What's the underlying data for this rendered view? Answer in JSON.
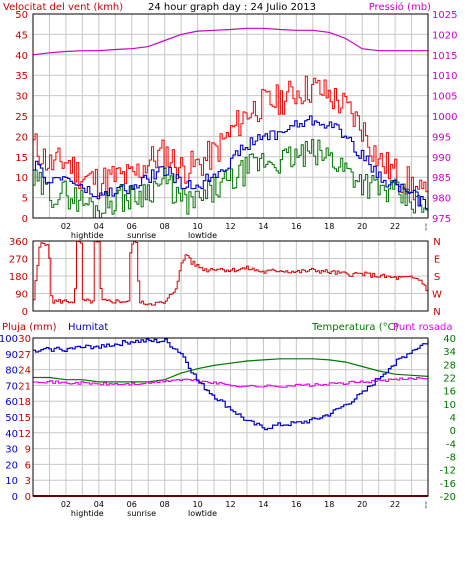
{
  "colors": {
    "wind": "#cc0000",
    "gust": "#ff0000",
    "avg": "#0000cc",
    "green": "#007700",
    "pressure": "#cc00cc",
    "dir": "#dd0000",
    "hum": "#0000cc",
    "temp": "#007700",
    "dew": "#ee00ee",
    "rain": "#cc0000",
    "grid": "#c8c8c8",
    "axis": "#000000"
  },
  "chart_data": [
    {
      "type": "line",
      "title": "24 hour graph day : 24 Julio 2013",
      "ylabel": "Velocitat del vent (kmh)",
      "y2label": "Pressió (mb)",
      "ylim": [
        0,
        50
      ],
      "y2lim": [
        975,
        1025
      ],
      "yticks": [
        "0",
        "5",
        "10",
        "15",
        "20",
        "25",
        "30",
        "35",
        "40",
        "45",
        "50"
      ],
      "y2ticks": [
        "975",
        "980",
        "985",
        "990",
        "995",
        "1000",
        "1005",
        "1010",
        "1015",
        "1020",
        "1025"
      ],
      "xlim": [
        0,
        24
      ],
      "xtick_labels": [
        "02",
        "04",
        "06",
        "08",
        "10",
        "12",
        "14",
        "16",
        "18",
        "20",
        "22"
      ],
      "markers": [
        {
          "label": "hightide",
          "x": 3.3
        },
        {
          "label": "sunrise",
          "x": 6.6
        },
        {
          "label": "lowtide",
          "x": 10.3
        }
      ],
      "series": {
        "gust": {
          "x": [
            0,
            1,
            2,
            3,
            4,
            5,
            6,
            7,
            8,
            9,
            10,
            11,
            12,
            13,
            14,
            15,
            16,
            17,
            18,
            19,
            20,
            21,
            22,
            23,
            24
          ],
          "y": [
            18,
            13,
            14,
            10,
            9,
            10,
            10,
            14,
            16,
            12,
            13,
            16,
            21,
            26,
            28,
            29,
            31,
            32,
            30,
            27,
            22,
            14,
            11,
            8,
            4
          ]
        },
        "avg": {
          "x": [
            0,
            1,
            2,
            3,
            4,
            5,
            6,
            7,
            8,
            9,
            10,
            11,
            12,
            13,
            14,
            15,
            16,
            17,
            18,
            19,
            20,
            21,
            22,
            23,
            24
          ],
          "y": [
            13,
            9,
            10,
            7,
            5,
            7,
            7,
            10,
            12,
            8,
            8,
            11,
            14,
            18,
            20,
            21,
            23,
            24,
            23,
            20,
            15,
            10,
            8,
            6,
            2
          ]
        },
        "sustained": {
          "x": [
            0,
            1,
            2,
            3,
            4,
            5,
            6,
            7,
            8,
            9,
            10,
            11,
            12,
            13,
            14,
            15,
            16,
            17,
            18,
            19,
            20,
            21,
            22,
            23,
            24
          ],
          "y": [
            9,
            6,
            6,
            4,
            2,
            5,
            5,
            7,
            9,
            4,
            4,
            7,
            9,
            12,
            14,
            14,
            15,
            16,
            15,
            12,
            9,
            7,
            6,
            4,
            1
          ]
        },
        "pressure": {
          "x": [
            0,
            1,
            2,
            3,
            4,
            5,
            6,
            7,
            8,
            9,
            10,
            11,
            12,
            13,
            14,
            15,
            16,
            17,
            18,
            19,
            20,
            21,
            22,
            23,
            24
          ],
          "y": [
            1015,
            1015.5,
            1015.8,
            1016,
            1016,
            1016.3,
            1016.5,
            1017,
            1018.5,
            1020,
            1020.8,
            1021,
            1021.2,
            1021.5,
            1021.5,
            1021.2,
            1021,
            1021,
            1020.5,
            1019,
            1016.5,
            1016,
            1016,
            1016,
            1016
          ]
        }
      }
    },
    {
      "type": "line",
      "ylim": [
        0,
        360
      ],
      "yticks": [
        "0",
        "90",
        "180",
        "270",
        "360"
      ],
      "y2ticks": [
        "N",
        "W",
        "S",
        "E",
        "N"
      ],
      "xlim": [
        0,
        24
      ],
      "series": {
        "direction": {
          "x": [
            0,
            0.4,
            0.6,
            0.9,
            1.1,
            2.5,
            2.6,
            2.9,
            3.0,
            3.6,
            3.7,
            4.0,
            4.1,
            5.8,
            5.9,
            6.3,
            6.4,
            8.0,
            8.3,
            8.6,
            9.0,
            9.3,
            9.6,
            10.0,
            10.5,
            11,
            12,
            13,
            14,
            15,
            16,
            17,
            18,
            19,
            20,
            21,
            22,
            23,
            23.5,
            24
          ],
          "y": [
            60,
            350,
            350,
            350,
            50,
            50,
            350,
            350,
            50,
            50,
            350,
            350,
            50,
            50,
            350,
            350,
            40,
            40,
            80,
            110,
            240,
            300,
            250,
            230,
            210,
            220,
            210,
            220,
            200,
            210,
            200,
            210,
            200,
            190,
            190,
            180,
            170,
            170,
            160,
            100
          ]
        }
      }
    },
    {
      "type": "line",
      "ylabel": "Pluja (mm)",
      "ylabel2": "Humitat",
      "y3label": "Temperatura (°C)",
      "y4label": "Punt rosada",
      "humidity_ticks": [
        "0",
        "10",
        "20",
        "30",
        "40",
        "50",
        "60",
        "70",
        "80",
        "90",
        "100"
      ],
      "rain_ticks": [
        "0",
        "3",
        "6",
        "9",
        "12",
        "15",
        "18",
        "21",
        "24",
        "27",
        "30"
      ],
      "temp_ticks": [
        "-20",
        "-16",
        "-12",
        "-8",
        "-4",
        "0",
        "4",
        "10",
        "16",
        "22",
        "28",
        "34",
        "40"
      ],
      "xlim": [
        0,
        24
      ],
      "xtick_labels": [
        "02",
        "04",
        "06",
        "08",
        "10",
        "12",
        "14",
        "16",
        "18",
        "20",
        "22"
      ],
      "markers": [
        {
          "label": "hightide",
          "x": 3.3
        },
        {
          "label": "sunrise",
          "x": 6.6
        },
        {
          "label": "lowtide",
          "x": 10.3
        }
      ],
      "series": {
        "humidity": {
          "x": [
            0,
            1,
            2,
            3,
            4,
            5,
            6,
            7,
            8,
            9,
            10,
            11,
            12,
            13,
            14,
            15,
            16,
            17,
            18,
            19,
            20,
            21,
            22,
            23,
            24
          ],
          "y": [
            91,
            93,
            93,
            94,
            95,
            96,
            98,
            98,
            98,
            90,
            72,
            63,
            55,
            47,
            43,
            45,
            46,
            48,
            52,
            58,
            65,
            75,
            85,
            92,
            98
          ]
        },
        "temperature": {
          "x": [
            0,
            1,
            2,
            3,
            4,
            5,
            6,
            7,
            8,
            9,
            10,
            11,
            12,
            13,
            14,
            15,
            16,
            17,
            18,
            19,
            20,
            21,
            22,
            23,
            24
          ],
          "y": [
            22,
            22,
            21,
            21,
            20,
            20,
            20,
            20,
            21,
            24,
            26,
            27.5,
            28.5,
            29.5,
            30,
            30.5,
            30.5,
            30.5,
            30,
            29,
            27,
            25,
            23.5,
            23,
            22.5
          ]
        },
        "dewpoint": {
          "x": [
            0,
            1,
            2,
            3,
            4,
            5,
            6,
            7,
            8,
            9,
            10,
            11,
            12,
            13,
            14,
            15,
            16,
            17,
            18,
            19,
            20,
            21,
            22,
            23,
            24
          ],
          "y": [
            20.5,
            20,
            19.5,
            19.5,
            19,
            19,
            19,
            19.5,
            20.5,
            21,
            20.5,
            19.5,
            18.5,
            18,
            18,
            18,
            18.5,
            18.5,
            19,
            19.5,
            20,
            20.5,
            21,
            21.5,
            22
          ]
        },
        "rain": {
          "x": [
            0,
            24
          ],
          "y": [
            0,
            0
          ]
        }
      }
    }
  ]
}
